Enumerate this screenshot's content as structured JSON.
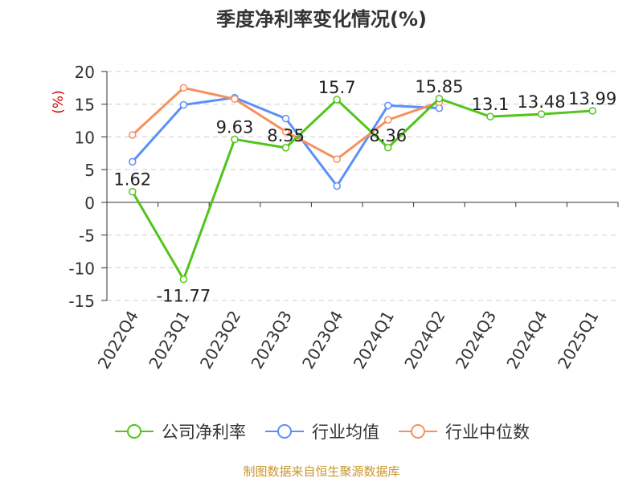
{
  "chart_data": {
    "type": "line",
    "title": "季度净利率变化情况(%)",
    "ylabel": "(%)",
    "ylim": [
      -15,
      20
    ],
    "yticks": [
      20,
      15,
      10,
      5,
      0,
      -5,
      -10,
      -15
    ],
    "categories": [
      "2022Q4",
      "2023Q1",
      "2023Q2",
      "2023Q3",
      "2023Q4",
      "2024Q1",
      "2024Q2",
      "2024Q3",
      "2024Q4",
      "2025Q1"
    ],
    "series": [
      {
        "name": "公司净利率",
        "color": "#52c41a",
        "values": [
          1.62,
          -11.77,
          9.63,
          8.35,
          15.7,
          8.36,
          15.85,
          13.1,
          13.48,
          13.99
        ],
        "labels": [
          "1.62",
          "-11.77",
          "9.63",
          "8.35",
          "15.7",
          "8.36",
          "15.85",
          "13.1",
          "13.48",
          "13.99"
        ]
      },
      {
        "name": "行业均值",
        "color": "#5b8ff9",
        "values": [
          6.2,
          14.9,
          16.0,
          12.8,
          2.5,
          14.8,
          14.4,
          null,
          null,
          null
        ]
      },
      {
        "name": "行业中位数",
        "color": "#f6905e",
        "values": [
          10.3,
          17.5,
          15.8,
          10.8,
          6.6,
          12.6,
          15.3,
          null,
          null,
          null
        ]
      }
    ],
    "grid": true,
    "legend_position": "bottom"
  },
  "footer": {
    "source": "制图数据来自恒生聚源数据库"
  },
  "colors": {
    "axis_label": "#cc0000",
    "grid": "#cccccc",
    "source": "#c8962a"
  }
}
